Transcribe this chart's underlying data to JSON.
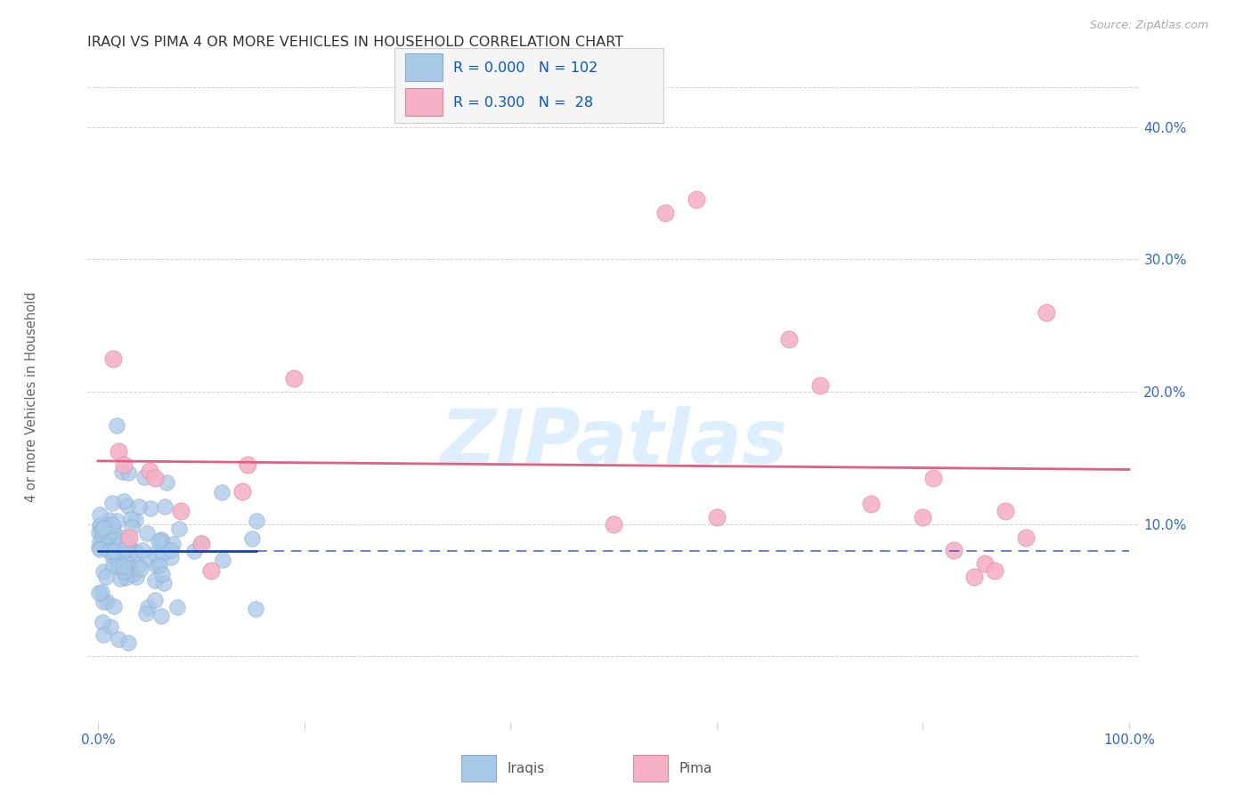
{
  "title": "IRAQI VS PIMA 4 OR MORE VEHICLES IN HOUSEHOLD CORRELATION CHART",
  "source": "Source: ZipAtlas.com",
  "ylabel": "4 or more Vehicles in Household",
  "xlim": [
    -1,
    101
  ],
  "ylim": [
    -5,
    43
  ],
  "ytick_vals": [
    0,
    10,
    20,
    30,
    40
  ],
  "ytick_labels": [
    "",
    "10.0%",
    "20.0%",
    "30.0%",
    "40.0%"
  ],
  "xtick_vals": [
    0,
    20,
    40,
    60,
    80,
    100
  ],
  "xtick_labels": [
    "0.0%",
    "",
    "",
    "",
    "",
    "100.0%"
  ],
  "bg_color": "#ffffff",
  "grid_color": "#cccccc",
  "iraqi_fill": "#a8c8e8",
  "iraqi_edge": "#88aacc",
  "pima_fill": "#f5b0c5",
  "pima_edge": "#dd8899",
  "iraqi_line_color": "#1144aa",
  "pima_line_color": "#e06080",
  "legend_box_color": "#f5f5f5",
  "legend_border_color": "#cccccc",
  "legend_R_color": "#0055cc",
  "legend_N_color": "#0055cc",
  "axis_label_color": "#3366cc",
  "watermark_color": "#ddeeff",
  "title_color": "#333333",
  "ylabel_color": "#666666",
  "source_color": "#aaaaaa",
  "iraqi_seed": 123,
  "pima_x": [
    1.5,
    2.0,
    2.5,
    5.0,
    5.5,
    8.0,
    10.0,
    11.0,
    14.0,
    14.5,
    19.0,
    50.0,
    55.0,
    58.0,
    60.0,
    67.0,
    70.0,
    75.0,
    80.0,
    81.0,
    83.0,
    85.0,
    86.0,
    87.0,
    88.0,
    90.0,
    92.0,
    3.0
  ],
  "pima_y": [
    22.5,
    15.5,
    14.5,
    14.0,
    13.5,
    11.0,
    8.5,
    6.5,
    12.5,
    14.5,
    21.0,
    10.0,
    33.5,
    34.5,
    10.5,
    24.0,
    20.5,
    11.5,
    10.5,
    13.5,
    8.0,
    6.0,
    7.0,
    6.5,
    11.0,
    9.0,
    26.0,
    9.0
  ],
  "iraqi_line_y_start": 7.8,
  "iraqi_line_y_end": 7.8,
  "iraqi_line_x_solid_end": 18.0,
  "pima_line_x_start": 0,
  "pima_line_x_end": 100
}
